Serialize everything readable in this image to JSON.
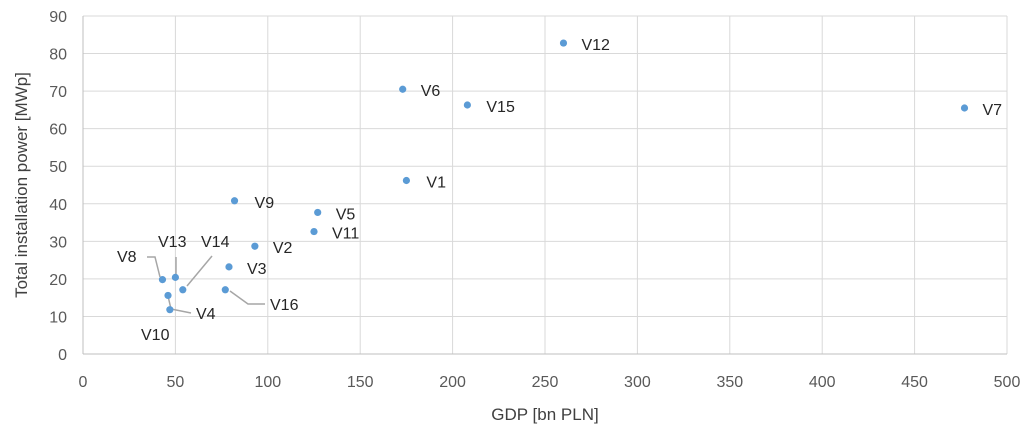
{
  "chart_data": {
    "type": "scatter",
    "title": "",
    "xlabel": "GDP [bn PLN]",
    "ylabel": "Total installation power [MWp]",
    "xlim": [
      0,
      500
    ],
    "ylim": [
      0,
      90
    ],
    "x_ticks": [
      0,
      50,
      100,
      150,
      200,
      250,
      300,
      350,
      400,
      450,
      500
    ],
    "y_ticks": [
      0,
      10,
      20,
      30,
      40,
      50,
      60,
      70,
      80,
      90
    ],
    "grid": true,
    "legend": "none",
    "colors": {
      "point": "#5b9bd5",
      "grid": "#d9d9d9",
      "leader": "#a6a6a6"
    },
    "points": [
      {
        "label": "V1",
        "x": 175,
        "y": 46.2
      },
      {
        "label": "V2",
        "x": 93,
        "y": 28.7
      },
      {
        "label": "V3",
        "x": 79,
        "y": 23.2
      },
      {
        "label": "V4",
        "x": 46,
        "y": 15.6
      },
      {
        "label": "V5",
        "x": 127,
        "y": 37.7
      },
      {
        "label": "V6",
        "x": 173,
        "y": 70.5
      },
      {
        "label": "V7",
        "x": 477,
        "y": 65.5
      },
      {
        "label": "V8",
        "x": 43,
        "y": 19.8
      },
      {
        "label": "V9",
        "x": 82,
        "y": 40.8
      },
      {
        "label": "V10",
        "x": 47,
        "y": 11.8
      },
      {
        "label": "V11",
        "x": 125,
        "y": 32.6
      },
      {
        "label": "V12",
        "x": 260,
        "y": 82.8
      },
      {
        "label": "V13",
        "x": 50,
        "y": 20.4
      },
      {
        "label": "V14",
        "x": 54,
        "y": 17.1
      },
      {
        "label": "V15",
        "x": 208,
        "y": 66.3
      },
      {
        "label": "V16",
        "x": 77,
        "y": 17.1
      }
    ]
  }
}
